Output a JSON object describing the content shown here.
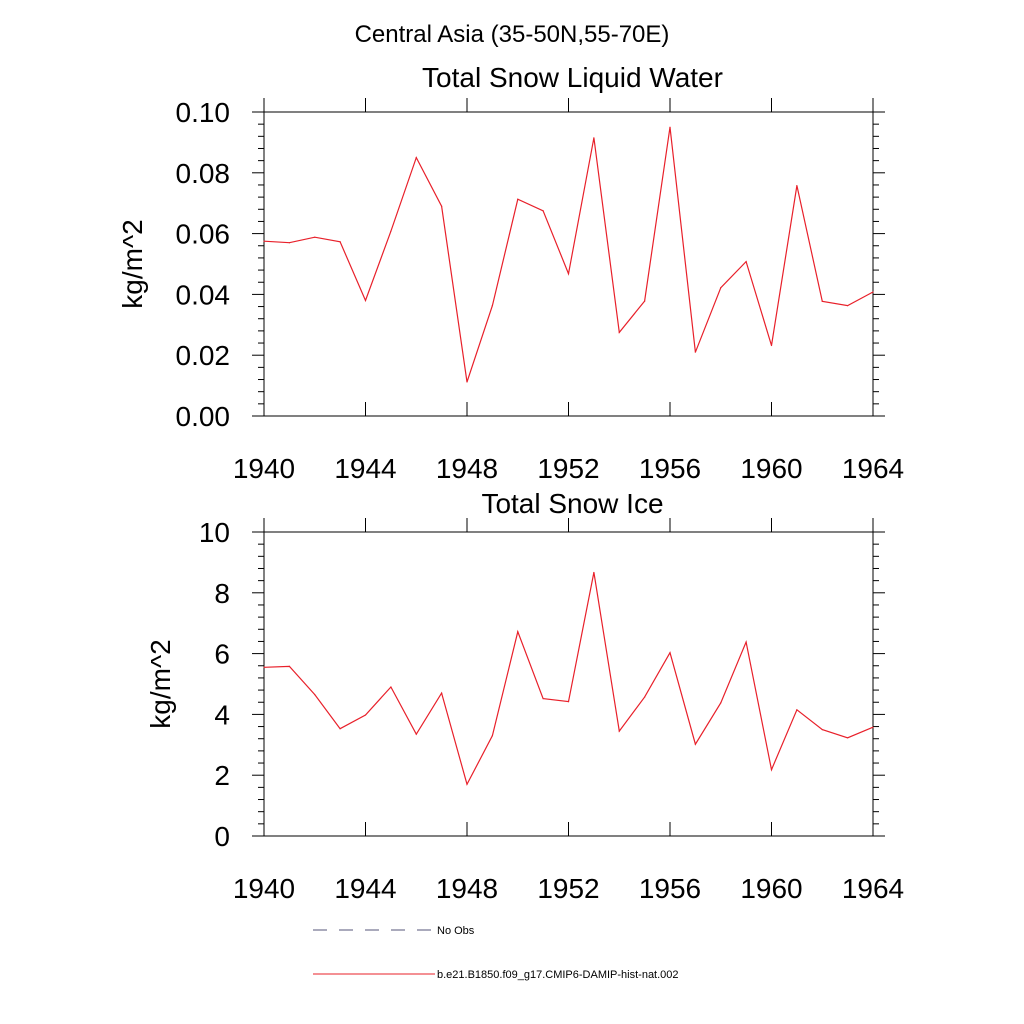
{
  "figure_title": "Central Asia (35-50N,55-70E)",
  "legend": {
    "items": [
      {
        "label": "No Obs",
        "style": "dashed",
        "color": "#55557a"
      },
      {
        "label": "b.e21.B1850.f09_g17.CMIP6-DAMIP-hist-nat.002",
        "style": "solid",
        "color": "#e8202a"
      }
    ]
  },
  "chart_data": [
    {
      "type": "line",
      "title": "Total Snow Liquid Water",
      "xlabel": "",
      "ylabel": "kg/m^2",
      "xlim": [
        1940,
        1964
      ],
      "ylim": [
        0,
        0.1
      ],
      "x_ticks": [
        1940,
        1944,
        1948,
        1952,
        1956,
        1960,
        1964
      ],
      "x_tick_labels": [
        "1940",
        "1944",
        "1948",
        "1952",
        "1956",
        "1960",
        "1964"
      ],
      "y_ticks": [
        0,
        0.02,
        0.04,
        0.06,
        0.08,
        0.1
      ],
      "y_tick_labels": [
        "0.00",
        "0.02",
        "0.04",
        "0.06",
        "0.08",
        "0.10"
      ],
      "grid": false,
      "series": [
        {
          "color": "#e8202a",
          "x": [
            1940,
            1941,
            1942,
            1943,
            1944,
            1945,
            1946,
            1947,
            1948,
            1949,
            1950,
            1951,
            1952,
            1953,
            1954,
            1955,
            1956,
            1957,
            1958,
            1959,
            1960,
            1961,
            1962,
            1963,
            1964
          ],
          "values": [
            0.0575,
            0.057,
            0.0588,
            0.0573,
            0.038,
            0.0608,
            0.085,
            0.069,
            0.0112,
            0.0363,
            0.0713,
            0.0675,
            0.0468,
            0.0915,
            0.0275,
            0.0378,
            0.095,
            0.021,
            0.0422,
            0.0508,
            0.0232,
            0.0758,
            0.0377,
            0.0363,
            0.0408
          ]
        }
      ]
    },
    {
      "type": "line",
      "title": "Total Snow Ice",
      "xlabel": "",
      "ylabel": "kg/m^2",
      "xlim": [
        1940,
        1964
      ],
      "ylim": [
        0,
        10
      ],
      "x_ticks": [
        1940,
        1944,
        1948,
        1952,
        1956,
        1960,
        1964
      ],
      "x_tick_labels": [
        "1940",
        "1944",
        "1948",
        "1952",
        "1956",
        "1960",
        "1964"
      ],
      "y_ticks": [
        0,
        2,
        4,
        6,
        8,
        10
      ],
      "y_tick_labels": [
        "0",
        "2",
        "4",
        "6",
        "8",
        "10"
      ],
      "grid": false,
      "series": [
        {
          "color": "#e8202a",
          "x": [
            1940,
            1941,
            1942,
            1943,
            1944,
            1945,
            1946,
            1947,
            1948,
            1949,
            1950,
            1951,
            1952,
            1953,
            1954,
            1955,
            1956,
            1957,
            1958,
            1959,
            1960,
            1961,
            1962,
            1963,
            1964
          ],
          "values": [
            5.55,
            5.58,
            4.65,
            3.53,
            3.98,
            4.9,
            3.35,
            4.7,
            1.7,
            3.3,
            6.72,
            4.52,
            4.42,
            8.67,
            3.45,
            4.57,
            6.03,
            3.02,
            4.38,
            6.38,
            2.18,
            4.15,
            3.5,
            3.23,
            3.58
          ]
        }
      ]
    }
  ]
}
